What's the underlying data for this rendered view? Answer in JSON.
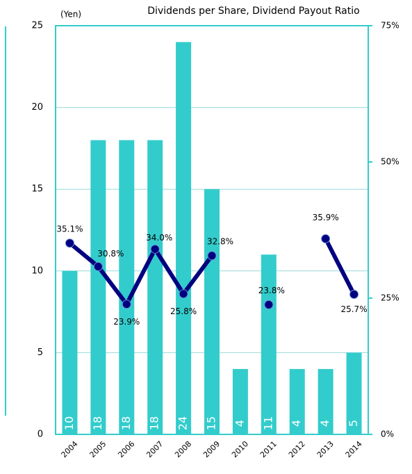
{
  "chart_data": {
    "type": "bar",
    "title": "Dividends per Share, Dividend Payout Ratio",
    "y_label": "(Yen)",
    "categories": [
      "2004",
      "2005",
      "2006",
      "2007",
      "2008",
      "2009",
      "2010",
      "2011",
      "2012",
      "2013",
      "2014"
    ],
    "series": [
      {
        "name": "Dividends per Share",
        "type": "bar",
        "color": "#33cccc",
        "values": [
          10,
          18,
          18,
          18,
          24,
          15,
          4,
          11,
          4,
          4,
          5
        ]
      },
      {
        "name": "Dividend Payout Ratio",
        "type": "line",
        "axis": "y2",
        "color": "#000080",
        "values": [
          35.1,
          30.8,
          23.9,
          34.0,
          25.8,
          32.8,
          null,
          23.8,
          null,
          35.9,
          25.7
        ],
        "value_labels": [
          "35.1%",
          "30.8%",
          "23.9%",
          "34.0%",
          "25.8%",
          "32.8%",
          null,
          "23.8%",
          null,
          "35.9%",
          "25.7%"
        ]
      }
    ],
    "ylim": [
      0,
      25
    ],
    "yticks": [
      0,
      5,
      10,
      15,
      20,
      25
    ],
    "y2lim": [
      0,
      75
    ],
    "y2ticks": [
      {
        "value": 0,
        "label": "0%"
      },
      {
        "value": 25,
        "label": "25%"
      },
      {
        "value": 50,
        "label": "50%"
      },
      {
        "value": 75,
        "label": "75%"
      }
    ],
    "grid": true
  }
}
